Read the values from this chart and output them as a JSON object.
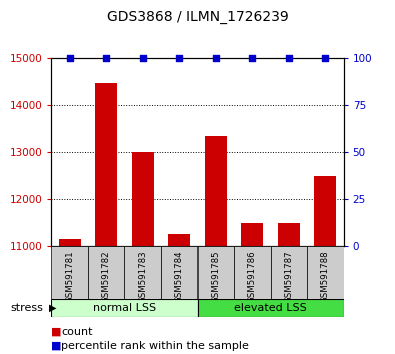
{
  "title": "GDS3868 / ILMN_1726239",
  "samples": [
    "GSM591781",
    "GSM591782",
    "GSM591783",
    "GSM591784",
    "GSM591785",
    "GSM591786",
    "GSM591787",
    "GSM591788"
  ],
  "counts": [
    11150,
    14480,
    13000,
    11250,
    13350,
    11500,
    11500,
    12500
  ],
  "percentiles": [
    100,
    100,
    100,
    100,
    100,
    100,
    100,
    100
  ],
  "ylim_left": [
    11000,
    15000
  ],
  "ylim_right": [
    0,
    100
  ],
  "yticks_left": [
    11000,
    12000,
    13000,
    14000,
    15000
  ],
  "yticks_right": [
    0,
    25,
    50,
    75,
    100
  ],
  "bar_color": "#cc0000",
  "dot_color": "#0000cc",
  "groups": [
    {
      "label": "normal LSS",
      "start": 0,
      "end": 4,
      "color": "#ccffcc"
    },
    {
      "label": "elevated LSS",
      "start": 4,
      "end": 8,
      "color": "#44dd44"
    }
  ],
  "stress_label": "stress",
  "legend_count_label": "count",
  "legend_percentile_label": "percentile rank within the sample",
  "tick_color_left": "#cc0000",
  "tick_color_right": "#0000cc",
  "xticklabel_area_color": "#cccccc"
}
